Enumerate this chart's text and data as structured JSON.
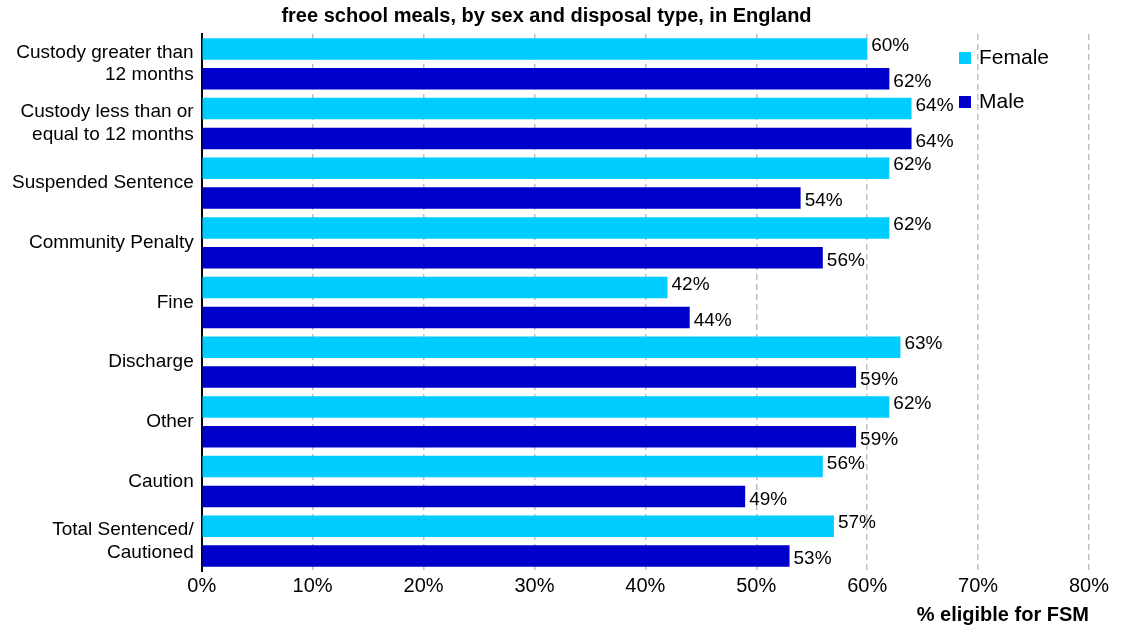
{
  "chart_data": {
    "type": "bar",
    "orientation": "horizontal",
    "title": "free school meals, by sex and disposal type, in England",
    "xlabel": "% eligible for FSM",
    "categories": [
      "Custody greater than 12 months",
      "Custody less than or equal to 12 months",
      "Suspended Sentence",
      "Community Penalty",
      "Fine",
      "Discharge",
      "Other",
      "Caution",
      "Total Sentenced/Cautioned"
    ],
    "series": [
      {
        "name": "Female",
        "color": "#00ccff",
        "values": [
          60,
          64,
          62,
          62,
          42,
          63,
          62,
          56,
          57
        ],
        "value_labels": [
          "60%",
          "64%",
          "62%",
          "62%",
          "42%",
          "63%",
          "62%",
          "56%",
          "57%"
        ]
      },
      {
        "name": "Male",
        "color": "#0000cc",
        "values": [
          62,
          64,
          54,
          56,
          44,
          59,
          59,
          49,
          53
        ],
        "value_labels": [
          "62%",
          "64%",
          "54%",
          "56%",
          "44%",
          "59%",
          "59%",
          "49%",
          "53%"
        ]
      }
    ],
    "xlim": [
      0,
      80
    ],
    "xticks": [
      {
        "value": 0,
        "label": "0%"
      },
      {
        "value": 10,
        "label": "10%"
      },
      {
        "value": 20,
        "label": "20%"
      },
      {
        "value": 30,
        "label": "30%"
      },
      {
        "value": 40,
        "label": "40%"
      },
      {
        "value": 50,
        "label": "50%"
      },
      {
        "value": 60,
        "label": "60%"
      },
      {
        "value": 70,
        "label": "70%"
      },
      {
        "value": 80,
        "label": "80%"
      }
    ],
    "grid": "x",
    "legend": "top right"
  }
}
